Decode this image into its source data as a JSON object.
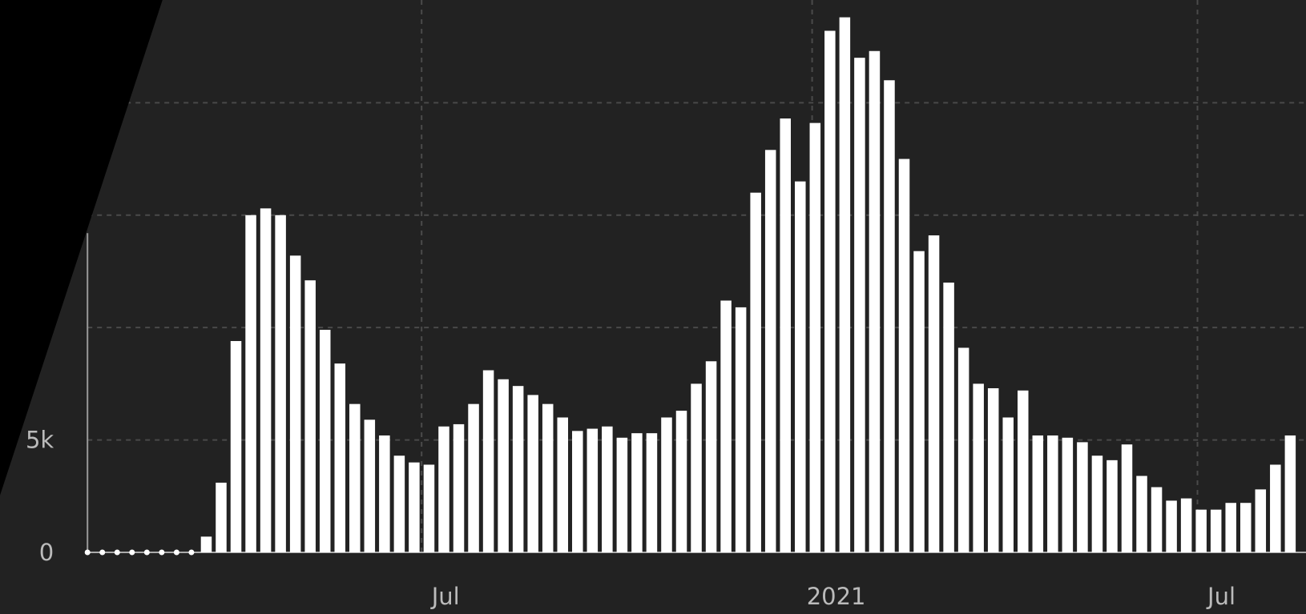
{
  "chart_data": {
    "type": "bar",
    "color": "#ffffff",
    "x": [
      0,
      1,
      2,
      3,
      4,
      5,
      6,
      7,
      8,
      9,
      10,
      11,
      12,
      13,
      14,
      15,
      16,
      17,
      18,
      19,
      20,
      21,
      22,
      23,
      24,
      25,
      26,
      27,
      28,
      29,
      30,
      31,
      32,
      33,
      34,
      35,
      36,
      37,
      38,
      39,
      40,
      41,
      42,
      43,
      44,
      45,
      46,
      47,
      48,
      49,
      50,
      51,
      52,
      53,
      54,
      55,
      56,
      57,
      58,
      59,
      60,
      61,
      62,
      63,
      64,
      65,
      66,
      67,
      68,
      69,
      70,
      71,
      72,
      73,
      74,
      75,
      76,
      77,
      78,
      79,
      80,
      81
    ],
    "values": [
      0,
      0,
      0,
      0,
      0,
      0,
      0,
      0,
      700,
      3100,
      9400,
      15000,
      15300,
      15000,
      13200,
      12100,
      9900,
      8400,
      6600,
      5900,
      5200,
      4300,
      4000,
      3900,
      5600,
      5700,
      6600,
      8100,
      7700,
      7400,
      7000,
      6600,
      6000,
      5400,
      5500,
      5600,
      5100,
      5300,
      5300,
      6000,
      6300,
      7500,
      8500,
      11200,
      10900,
      16000,
      17900,
      19300,
      16500,
      19100,
      23200,
      23800,
      22000,
      22300,
      21000,
      17500,
      13400,
      14100,
      12000,
      9100,
      7500,
      7300,
      6000,
      7200,
      5200,
      5200,
      5100,
      4900,
      4300,
      4100,
      4800,
      3400,
      2900,
      2300,
      2400,
      1900,
      1900,
      2200,
      2200,
      2800,
      3900,
      5200
    ],
    "xlim": [
      -0.5,
      81.5
    ],
    "xticks": [
      {
        "value": 22.5,
        "label": "Jul"
      },
      {
        "value": 48.8,
        "label": "2021"
      },
      {
        "value": 74.75,
        "label": "Jul"
      }
    ],
    "ylim": [
      0,
      24570
    ],
    "yticks": [
      0,
      {
        "value": 5000,
        "label": "5k"
      },
      {
        "value": 10000,
        "label": null
      },
      {
        "value": 15000,
        "label": null
      },
      {
        "value": 20000,
        "label": null
      }
    ],
    "grid": true
  }
}
